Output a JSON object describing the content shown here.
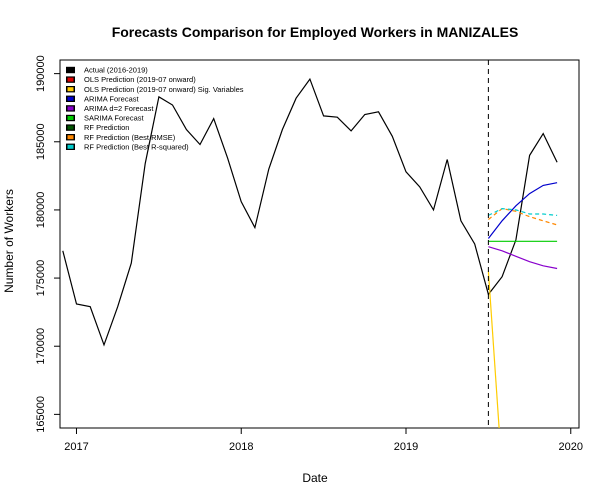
{
  "chart_data": {
    "type": "line",
    "title": "Forecasts Comparison for Employed Workers in MANIZALES",
    "xlabel": "Date",
    "ylabel": "Number of Workers",
    "xlim": [
      2016.9,
      2020.05
    ],
    "ylim": [
      164000,
      191000
    ],
    "x_ticks": [
      2017,
      2018,
      2019,
      2020
    ],
    "x_tick_labels": [
      "2017",
      "2018",
      "2019",
      "2020"
    ],
    "y_ticks": [
      165000,
      170000,
      175000,
      180000,
      185000,
      190000
    ],
    "y_tick_labels": [
      "165000",
      "170000",
      "175000",
      "180000",
      "185000",
      "190000"
    ],
    "grid": false,
    "legend_position": "top-left",
    "forecast_start_marker": {
      "x": 2019.5,
      "style": "dashed"
    },
    "series": [
      {
        "name": "Actual (2016-2019)",
        "color": "#000000",
        "dashed": false,
        "x": [
          2016.917,
          2017.0,
          2017.083,
          2017.167,
          2017.25,
          2017.333,
          2017.417,
          2017.5,
          2017.583,
          2017.667,
          2017.75,
          2017.833,
          2017.917,
          2018.0,
          2018.083,
          2018.167,
          2018.25,
          2018.333,
          2018.417,
          2018.5,
          2018.583,
          2018.667,
          2018.75,
          2018.833,
          2018.917,
          2019.0,
          2019.083,
          2019.167,
          2019.25,
          2019.333,
          2019.417,
          2019.5,
          2019.583,
          2019.667,
          2019.75,
          2019.833,
          2019.917
        ],
        "y": [
          177000,
          173100,
          172900,
          170100,
          172900,
          176100,
          183400,
          188300,
          187700,
          185900,
          184800,
          186700,
          183800,
          180600,
          178700,
          183000,
          185900,
          188200,
          189600,
          186900,
          186800,
          185800,
          187000,
          187200,
          185400,
          182800,
          181700,
          180000,
          183700,
          179200,
          177500,
          173800,
          175100,
          177800,
          184000,
          185600,
          183500
        ]
      },
      {
        "name": "OLS Prediction (2019-07 onward)",
        "color": "#dd0000",
        "dashed": false,
        "x": [],
        "y": []
      },
      {
        "name": "OLS Prediction (2019-07 onward) Sig. Variables",
        "color": "#ffcc00",
        "dashed": false,
        "x": [
          2019.5,
          2019.565
        ],
        "y": [
          175500,
          164000
        ]
      },
      {
        "name": "ARIMA Forecast",
        "color": "#0000cc",
        "dashed": false,
        "x": [
          2019.5,
          2019.583,
          2019.667,
          2019.75,
          2019.833,
          2019.917
        ],
        "y": [
          177900,
          179200,
          180300,
          181200,
          181800,
          182000
        ]
      },
      {
        "name": "ARIMA d=2 Forecast",
        "color": "#8800cc",
        "dashed": false,
        "x": [
          2019.5,
          2019.583,
          2019.667,
          2019.75,
          2019.833,
          2019.917
        ],
        "y": [
          177300,
          177000,
          176600,
          176200,
          175900,
          175700
        ]
      },
      {
        "name": "SARIMA Forecast",
        "color": "#00cc00",
        "dashed": false,
        "x": [
          2019.5,
          2019.583,
          2019.667,
          2019.75,
          2019.833,
          2019.917
        ],
        "y": [
          177700,
          177700,
          177700,
          177700,
          177700,
          177700
        ]
      },
      {
        "name": "RF Prediction",
        "color": "#005500",
        "dashed": false,
        "x": [],
        "y": []
      },
      {
        "name": "RF Prediction (Best RMSE)",
        "color": "#ff8800",
        "dashed": true,
        "x": [
          2019.5,
          2019.583,
          2019.667,
          2019.75,
          2019.833,
          2019.917
        ],
        "y": [
          179300,
          180100,
          179900,
          179500,
          179200,
          178900
        ]
      },
      {
        "name": "RF Prediction (Best R-squared)",
        "color": "#00cccc",
        "dashed": true,
        "x": [
          2019.5,
          2019.583,
          2019.667,
          2019.75,
          2019.833,
          2019.917
        ],
        "y": [
          179600,
          180100,
          180000,
          179700,
          179700,
          179600
        ]
      }
    ]
  }
}
